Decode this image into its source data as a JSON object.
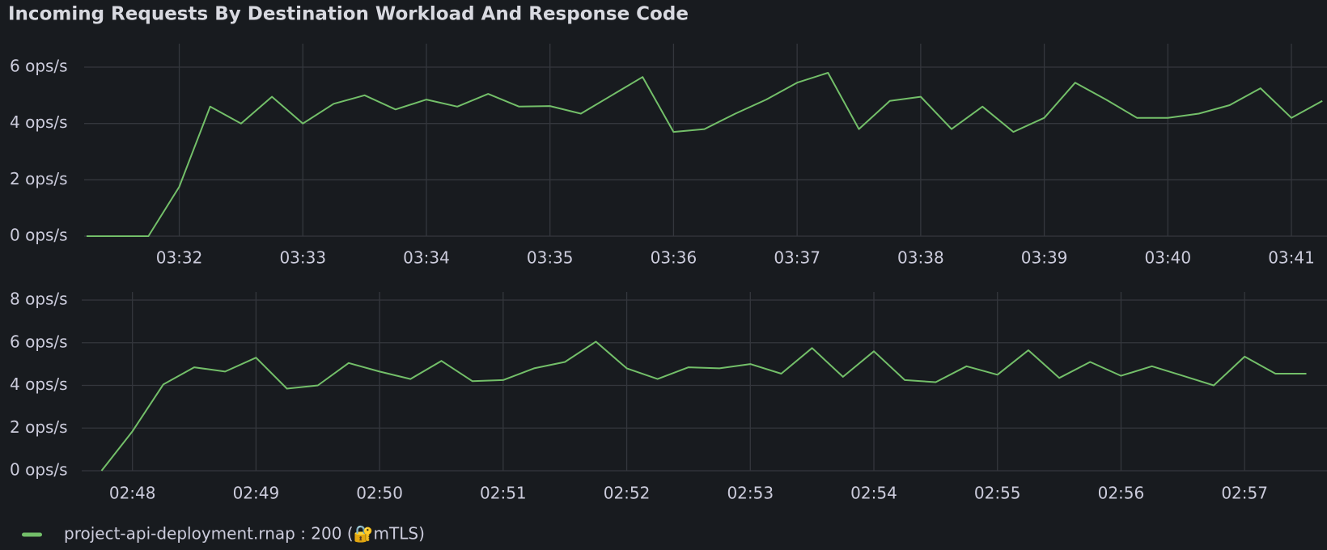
{
  "title": "Incoming Requests By Destination Workload And Response Code",
  "legend": [
    {
      "name": "project-api-deployment.rnap : 200 (🔐mTLS)",
      "color": "#73bf69"
    }
  ],
  "chart_data": [
    {
      "type": "line",
      "categories": [
        null,
        null,
        null,
        "03:32",
        null,
        null,
        null,
        "03:33",
        null,
        null,
        null,
        "03:34",
        null,
        null,
        null,
        "03:35",
        null,
        null,
        null,
        "03:36",
        null,
        null,
        null,
        "03:37",
        null,
        null,
        null,
        "03:38",
        null,
        null,
        null,
        "03:39",
        null,
        null,
        null,
        "03:40",
        null,
        null,
        null,
        "03:41",
        null
      ],
      "series": [
        {
          "color": "#73bf69",
          "values": [
            0,
            0,
            0,
            1.75,
            4.6,
            4.0,
            4.95,
            4.0,
            4.7,
            5.0,
            4.5,
            4.85,
            4.6,
            5.05,
            4.6,
            4.62,
            4.35,
            5.0,
            5.65,
            3.7,
            3.8,
            4.35,
            4.85,
            5.45,
            5.8,
            3.8,
            4.8,
            4.95,
            3.8,
            4.6,
            3.7,
            4.2,
            5.45,
            4.85,
            4.2,
            4.2,
            4.35,
            4.65,
            5.25,
            4.2,
            4.8
          ]
        }
      ],
      "ylim": [
        0,
        6
      ],
      "yticks": [
        {
          "value": 0,
          "label": "0 ops/s"
        },
        {
          "value": 2,
          "label": "2 ops/s"
        },
        {
          "value": 4,
          "label": "4 ops/s"
        },
        {
          "value": 6,
          "label": "6 ops/s"
        }
      ],
      "grid": true
    },
    {
      "type": "line",
      "categories": [
        null,
        "02:48",
        null,
        null,
        null,
        "02:49",
        null,
        null,
        null,
        "02:50",
        null,
        null,
        null,
        "02:51",
        null,
        null,
        null,
        "02:52",
        null,
        null,
        null,
        "02:53",
        null,
        null,
        null,
        "02:54",
        null,
        null,
        null,
        "02:55",
        null,
        null,
        null,
        "02:56",
        null,
        null,
        null,
        "02:57",
        null,
        null
      ],
      "series": [
        {
          "color": "#73bf69",
          "values": [
            0,
            1.85,
            4.05,
            4.85,
            4.65,
            5.3,
            3.85,
            4.0,
            5.05,
            4.65,
            4.3,
            5.15,
            4.2,
            4.25,
            4.8,
            5.1,
            6.05,
            4.8,
            4.3,
            4.85,
            4.8,
            5.0,
            4.55,
            5.75,
            4.4,
            5.6,
            4.25,
            4.15,
            4.9,
            4.5,
            5.65,
            4.35,
            5.1,
            4.45,
            4.9,
            4.45,
            4.0,
            5.35,
            4.55,
            4.55
          ]
        }
      ],
      "ylim": [
        0,
        8
      ],
      "yticks": [
        {
          "value": 0,
          "label": "0 ops/s"
        },
        {
          "value": 2,
          "label": "2 ops/s"
        },
        {
          "value": 4,
          "label": "4 ops/s"
        },
        {
          "value": 6,
          "label": "6 ops/s"
        },
        {
          "value": 8,
          "label": "8 ops/s"
        }
      ],
      "grid": true
    }
  ]
}
